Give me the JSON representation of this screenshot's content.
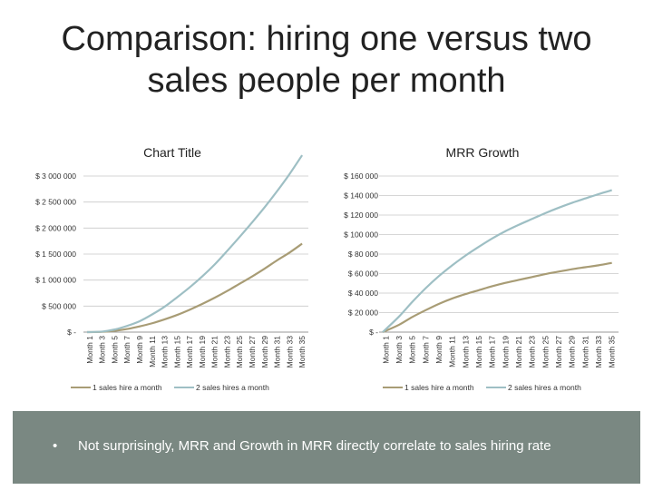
{
  "slide": {
    "title": "Comparison: hiring one versus two sales people per month",
    "bullet": "Not surprisingly, MRR and Growth in MRR directly correlate to sales hiring rate"
  },
  "colors": {
    "series1": "#a89c75",
    "series2": "#9ebfc4",
    "axis": "#999999",
    "panel": "#7a8882"
  },
  "chart_data": [
    {
      "type": "line",
      "title": "Chart Title",
      "y_tick_labels": [
        "$ -",
        "$ 500 000",
        "$ 1 000 000",
        "$ 1 500 000",
        "$ 2 000 000",
        "$ 2 500 000",
        "$ 3 000 000"
      ],
      "ylim": [
        0,
        3000000
      ],
      "y_step": 500000,
      "categories": [
        "Month 1",
        "Month 3",
        "Month 5",
        "Month 7",
        "Month 9",
        "Month 11",
        "Month 13",
        "Month 15",
        "Month 17",
        "Month 19",
        "Month 21",
        "Month 23",
        "Month 25",
        "Month 27",
        "Month 29",
        "Month 31",
        "Month 33",
        "Month 35"
      ],
      "series": [
        {
          "name": "1 sales hire a month",
          "values": [
            0,
            5000,
            25000,
            60000,
            110000,
            170000,
            245000,
            330000,
            430000,
            540000,
            660000,
            790000,
            930000,
            1070000,
            1220000,
            1380000,
            1530000,
            1700000
          ]
        },
        {
          "name": "2 sales hires a month",
          "values": [
            0,
            10000,
            50000,
            120000,
            210000,
            340000,
            490000,
            670000,
            860000,
            1070000,
            1300000,
            1560000,
            1830000,
            2110000,
            2400000,
            2710000,
            3040000,
            3400000
          ]
        }
      ],
      "legend": "bottom",
      "grid": true
    },
    {
      "type": "line",
      "title": "MRR Growth",
      "y_tick_labels": [
        "$ -",
        "$ 20 000",
        "$ 40 000",
        "$ 60 000",
        "$ 80 000",
        "$ 100 000",
        "$ 120 000",
        "$ 140 000",
        "$ 160 000"
      ],
      "ylim": [
        0,
        160000
      ],
      "y_step": 20000,
      "categories": [
        "Month 1",
        "Month 3",
        "Month 5",
        "Month 7",
        "Month 9",
        "Month 11",
        "Month 13",
        "Month 15",
        "Month 17",
        "Month 19",
        "Month 21",
        "Month 23",
        "Month 25",
        "Month 27",
        "Month 29",
        "Month 31",
        "Month 33",
        "Month 35"
      ],
      "series": [
        {
          "name": "1 sales hire a month",
          "values": [
            0,
            7500,
            15500,
            22500,
            29000,
            34500,
            39000,
            43000,
            47000,
            50500,
            53500,
            56500,
            59500,
            62000,
            64500,
            66500,
            68500,
            71000
          ]
        },
        {
          "name": "2 sales hires a month",
          "values": [
            0,
            16000,
            31000,
            45000,
            57500,
            68500,
            78500,
            87500,
            96000,
            103500,
            110000,
            116000,
            122000,
            127500,
            132500,
            137000,
            141500,
            145500
          ]
        }
      ],
      "legend": "bottom",
      "grid": true
    }
  ]
}
